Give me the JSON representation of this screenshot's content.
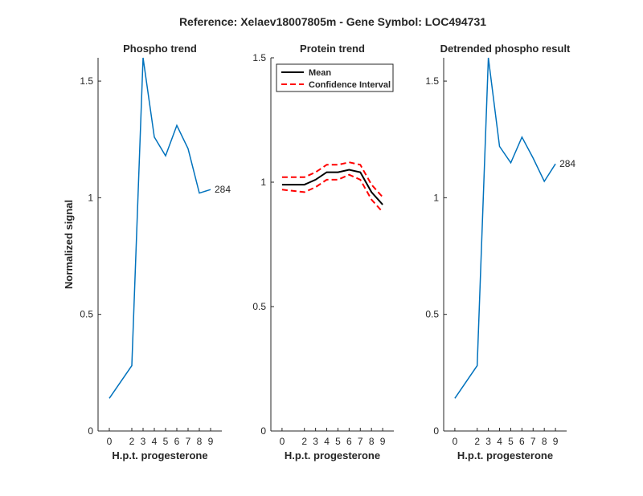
{
  "figure": {
    "title": "Reference:  Xelaev18007805m - Gene Symbol:  LOC494731"
  },
  "chart_data": [
    {
      "type": "line",
      "title": "Phospho trend",
      "xlabel": "H.p.t. progesterone",
      "ylabel": "Normalized signal",
      "x": [
        0,
        2,
        3,
        4,
        5,
        6,
        7,
        8,
        9
      ],
      "xticks": [
        "0",
        "2",
        "3",
        "4",
        "5",
        "6",
        "7",
        "8",
        "9"
      ],
      "yticks": [
        "0",
        "0.5",
        "1",
        "1.5"
      ],
      "ylim": [
        0,
        1.6
      ],
      "series": [
        {
          "values": [
            0.14,
            0.28,
            1.6,
            1.26,
            1.18,
            1.31,
            1.21,
            1.02,
            1.035
          ],
          "color": "#0072BD"
        }
      ],
      "annotation": {
        "text": "284",
        "x": 9,
        "y": 1.035
      }
    },
    {
      "type": "line",
      "title": "Protein trend",
      "xlabel": "H.p.t. progesterone",
      "ylabel": "",
      "x": [
        0,
        2,
        3,
        4,
        5,
        6,
        7,
        8,
        9
      ],
      "xticks": [
        "0",
        "2",
        "3",
        "4",
        "5",
        "6",
        "7",
        "8",
        "9"
      ],
      "yticks": [
        "0",
        "0.5",
        "1",
        "1.5"
      ],
      "ylim": [
        0,
        1.5
      ],
      "series": [
        {
          "name": "Mean",
          "values": [
            0.99,
            0.99,
            1.01,
            1.04,
            1.04,
            1.05,
            1.04,
            0.96,
            0.91
          ],
          "color": "#000000",
          "style": "solid"
        },
        {
          "name": "Confidence Interval",
          "values": [
            1.02,
            1.02,
            1.04,
            1.07,
            1.07,
            1.08,
            1.07,
            0.99,
            0.94
          ],
          "color": "#FF0000",
          "style": "dashed"
        },
        {
          "values": [
            0.97,
            0.96,
            0.98,
            1.01,
            1.01,
            1.03,
            1.01,
            0.93,
            0.88
          ],
          "color": "#FF0000",
          "style": "dashed"
        }
      ],
      "legend": {
        "placement": "top-left",
        "entries": [
          "Mean",
          "Confidence Interval"
        ]
      }
    },
    {
      "type": "line",
      "title": "Detrended phospho result",
      "xlabel": "H.p.t. progesterone",
      "ylabel": "",
      "x": [
        0,
        2,
        3,
        4,
        5,
        6,
        7,
        8,
        9
      ],
      "xticks": [
        "0",
        "2",
        "3",
        "4",
        "5",
        "6",
        "7",
        "8",
        "9"
      ],
      "yticks": [
        "0",
        "0.5",
        "1",
        "1.5"
      ],
      "ylim": [
        0,
        1.6
      ],
      "series": [
        {
          "values": [
            0.14,
            0.28,
            1.6,
            1.22,
            1.15,
            1.26,
            1.17,
            1.07,
            1.145
          ],
          "color": "#0072BD"
        }
      ],
      "annotation": {
        "text": "284",
        "x": 9,
        "y": 1.145
      }
    }
  ]
}
